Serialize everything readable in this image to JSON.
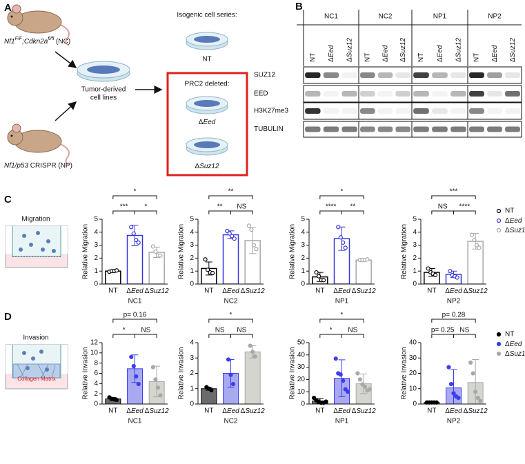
{
  "panel_a": {
    "label": "A",
    "nc_mouse": [
      "Nf1",
      "F/F",
      ";Cdkn2a",
      "fl/fl",
      " (NC)"
    ],
    "np_mouse": [
      "Nf1/p53",
      " CRISPR (NP)"
    ],
    "cell_lines": [
      "Tumor-derived",
      "cell lines"
    ],
    "isogenic": "Isogenic cell series:",
    "nt": "NT",
    "prc2": "PRC2 deleted:",
    "eed": "ΔEed",
    "suz12": "ΔSuz12"
  },
  "panel_b": {
    "label": "B",
    "groups": [
      "NC1",
      "NC2",
      "NP1",
      "NP2"
    ],
    "lanes": [
      "NT",
      "ΔEed",
      "ΔSuz12"
    ],
    "proteins": [
      "SUZ12",
      "EED",
      "H3K27me3",
      "TUBULIN"
    ]
  },
  "panel_c": {
    "label": "C",
    "icon_label": "Migration"
  },
  "panel_d": {
    "label": "D",
    "icon_label": "Invasion",
    "matrix_label": "Collagen Matrix"
  },
  "chart_data": [
    {
      "type": "bar",
      "title": "NC1",
      "ylabel": "Relative Migration",
      "categories": [
        "NT",
        "ΔEed",
        "ΔSuz12"
      ],
      "values": [
        1.0,
        3.75,
        2.45
      ],
      "errors": [
        0.05,
        0.8,
        0.4
      ],
      "points": [
        [
          0.95,
          1.0,
          1.0,
          1.05
        ],
        [
          4.4,
          3.9,
          3.4,
          3.2
        ],
        [
          2.9,
          2.5,
          2.2,
          2.2
        ]
      ],
      "colors": [
        "#000000",
        "#3535dd",
        "#a8a8a8"
      ],
      "point_style": "open",
      "ylim": [
        0,
        5
      ],
      "yticks": [
        0,
        1,
        2,
        3,
        4,
        5
      ],
      "comparisons": [
        {
          "pair": [
            0,
            1
          ],
          "label": "***"
        },
        {
          "pair": [
            1,
            2
          ],
          "label": "*"
        },
        {
          "pair": [
            0,
            2
          ],
          "label": "*"
        }
      ]
    },
    {
      "type": "bar",
      "title": "NC2",
      "ylabel": "Relative Migration",
      "categories": [
        "NT",
        "ΔEed",
        "ΔSuz12"
      ],
      "values": [
        1.2,
        3.8,
        3.35
      ],
      "errors": [
        0.5,
        0.3,
        1.0
      ],
      "points": [
        [
          1.9,
          1.1,
          0.9,
          0.85
        ],
        [
          4.1,
          3.9,
          3.7,
          3.5
        ],
        [
          4.5,
          4.2,
          3.0,
          2.7
        ]
      ],
      "colors": [
        "#000000",
        "#3535dd",
        "#a8a8a8"
      ],
      "point_style": "open",
      "ylim": [
        0,
        5
      ],
      "yticks": [
        0,
        1,
        2,
        3,
        4,
        5
      ],
      "comparisons": [
        {
          "pair": [
            0,
            1
          ],
          "label": "**"
        },
        {
          "pair": [
            1,
            2
          ],
          "label": "NS"
        },
        {
          "pair": [
            0,
            2
          ],
          "label": "**"
        }
      ]
    },
    {
      "type": "bar",
      "title": "NP1",
      "ylabel": "Relative Migration",
      "categories": [
        "NT",
        "ΔEed",
        "ΔSuz12"
      ],
      "values": [
        0.55,
        3.5,
        1.85
      ],
      "errors": [
        0.35,
        0.9,
        0.05
      ],
      "points": [
        [
          0.9,
          0.6,
          0.3,
          0.3
        ],
        [
          4.4,
          3.6,
          3.2,
          2.8
        ],
        [
          1.85,
          1.85,
          1.85,
          1.9
        ]
      ],
      "colors": [
        "#000000",
        "#3535dd",
        "#a8a8a8"
      ],
      "point_style": "open",
      "ylim": [
        0,
        5
      ],
      "yticks": [
        0,
        1,
        2,
        3,
        4,
        5
      ],
      "comparisons": [
        {
          "pair": [
            0,
            1
          ],
          "label": "****"
        },
        {
          "pair": [
            1,
            2
          ],
          "label": "**"
        },
        {
          "pair": [
            0,
            2
          ],
          "label": "*"
        }
      ]
    },
    {
      "type": "bar",
      "title": "NP2",
      "ylabel": "Relative Migration",
      "categories": [
        "NT",
        "ΔEed",
        "ΔSuz12"
      ],
      "values": [
        0.9,
        0.75,
        3.3
      ],
      "errors": [
        0.3,
        0.25,
        0.6
      ],
      "points": [
        [
          1.2,
          0.9,
          0.8,
          0.7
        ],
        [
          1.0,
          0.7,
          0.6,
          0.5
        ],
        [
          3.8,
          3.4,
          3.0,
          2.8
        ]
      ],
      "colors": [
        "#000000",
        "#3535dd",
        "#a8a8a8"
      ],
      "point_style": "open",
      "legend": true,
      "ylim": [
        0,
        5
      ],
      "yticks": [
        0,
        1,
        2,
        3,
        4,
        5
      ],
      "comparisons": [
        {
          "pair": [
            0,
            1
          ],
          "label": "NS"
        },
        {
          "pair": [
            1,
            2
          ],
          "label": "****"
        },
        {
          "pair": [
            0,
            2
          ],
          "label": "***"
        }
      ]
    },
    {
      "type": "bar",
      "title": "NC1",
      "ylabel": "Relative Invasion",
      "categories": [
        "NT",
        "ΔEed",
        "ΔSuz12"
      ],
      "values": [
        1.0,
        6.9,
        4.4
      ],
      "errors": [
        0.3,
        2.7,
        3.0
      ],
      "points": [
        [
          1.3,
          1.0,
          0.9,
          0.8
        ],
        [
          9.2,
          7.4,
          5.4,
          3.9
        ],
        [
          7.2,
          4.8,
          3.2,
          1.7
        ]
      ],
      "colors": [
        "#000000",
        "#3d3df0",
        "#a8a8a8"
      ],
      "fill_colors": [
        "#6b6b6b",
        "#a9a9f2",
        "#d3d6ce"
      ],
      "point_style": "filled",
      "ylim": [
        0,
        12
      ],
      "yticks": [
        0,
        2,
        4,
        6,
        8,
        10,
        12
      ],
      "comparisons": [
        {
          "pair": [
            0,
            1
          ],
          "label": "*"
        },
        {
          "pair": [
            1,
            2
          ],
          "label": "NS"
        },
        {
          "pair": [
            0,
            2
          ],
          "label": "p= 0.16"
        }
      ]
    },
    {
      "type": "bar",
      "title": "NC2",
      "ylabel": "Relative Invasion",
      "categories": [
        "NT",
        "ΔEed",
        "ΔSuz12"
      ],
      "values": [
        1.0,
        2.0,
        3.4
      ],
      "errors": [
        0.1,
        0.9,
        0.4
      ],
      "points": [
        [
          1.1,
          1.0,
          0.9
        ],
        [
          2.9,
          1.9,
          1.3
        ],
        [
          3.8,
          3.4,
          3.1
        ]
      ],
      "colors": [
        "#000000",
        "#3d3df0",
        "#a8a8a8"
      ],
      "fill_colors": [
        "#6b6b6b",
        "#a9a9f2",
        "#d3d6ce"
      ],
      "point_style": "filled",
      "ylim": [
        0,
        4
      ],
      "yticks": [
        0,
        1,
        2,
        3,
        4
      ],
      "comparisons": [
        {
          "pair": [
            0,
            1
          ],
          "label": "NS"
        },
        {
          "pair": [
            1,
            2
          ],
          "label": "NS"
        },
        {
          "pair": [
            0,
            2
          ],
          "label": "*"
        }
      ]
    },
    {
      "type": "bar",
      "title": "NP1",
      "ylabel": "Relative Invasion",
      "categories": [
        "NT",
        "ΔEed",
        "ΔSuz12"
      ],
      "values": [
        2.5,
        21,
        16.5
      ],
      "errors": [
        2,
        15,
        8
      ],
      "points": [
        [
          5,
          3,
          2,
          1,
          1,
          2
        ],
        [
          37,
          25,
          24,
          19,
          12,
          10
        ],
        [
          25,
          20,
          16,
          14,
          11,
          12
        ]
      ],
      "colors": [
        "#000000",
        "#3d3df0",
        "#a8a8a8"
      ],
      "fill_colors": [
        "#6b6b6b",
        "#a9a9f2",
        "#d3d6ce"
      ],
      "point_style": "filled",
      "ylim": [
        0,
        50
      ],
      "yticks": [
        0,
        10,
        20,
        30,
        40,
        50
      ],
      "comparisons": [
        {
          "pair": [
            0,
            1
          ],
          "label": "*"
        },
        {
          "pair": [
            1,
            2
          ],
          "label": "NS"
        },
        {
          "pair": [
            0,
            2
          ],
          "label": "*"
        }
      ]
    },
    {
      "type": "bar",
      "title": "NP2",
      "ylabel": "Relative Invasion",
      "categories": [
        "NT",
        "ΔEed",
        "ΔSuz12"
      ],
      "values": [
        1,
        10.5,
        14
      ],
      "errors": [
        0.5,
        12,
        15
      ],
      "points": [
        [
          1,
          1,
          1,
          1,
          1
        ],
        [
          24,
          13,
          7,
          5,
          4
        ],
        [
          27,
          20,
          8,
          4,
          2
        ]
      ],
      "colors": [
        "#000000",
        "#3d3df0",
        "#a8a8a8"
      ],
      "fill_colors": [
        "#6b6b6b",
        "#a9a9f2",
        "#d3d6ce"
      ],
      "point_style": "filled",
      "legend": true,
      "ylim": [
        0,
        40
      ],
      "yticks": [
        0,
        10,
        20,
        30,
        40
      ],
      "comparisons": [
        {
          "pair": [
            0,
            1
          ],
          "label": "p= 0.25"
        },
        {
          "pair": [
            1,
            2
          ],
          "label": "NS"
        },
        {
          "pair": [
            0,
            2
          ],
          "label": "p= 0.28"
        }
      ]
    }
  ]
}
